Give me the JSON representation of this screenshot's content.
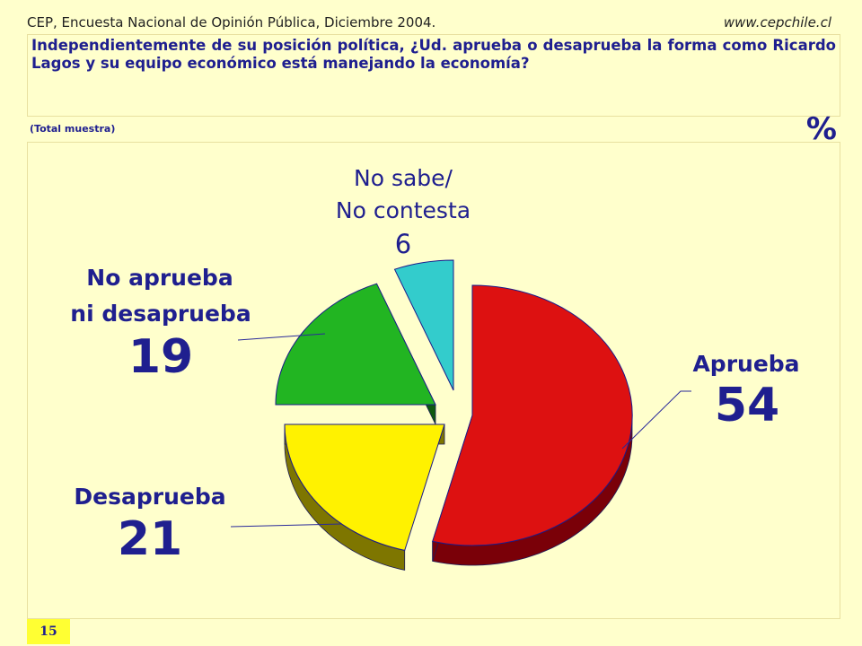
{
  "header": {
    "source": "CEP, Encuesta Nacional de Opinión Pública, Diciembre 2004.",
    "url": "www.cepchile.cl"
  },
  "question": "Independientemente de su posición política, ¿Ud. aprueba o desaprueba la forma como Ricardo Lagos y su equipo económico está manejando la economía?",
  "sample_note": "(Total muestra)",
  "unit": "%",
  "page_number": "15",
  "chart_data": {
    "type": "pie",
    "title": "",
    "slices": [
      {
        "label": "Aprueba",
        "value": 54,
        "color": "#DD1111",
        "side": "#7A0008"
      },
      {
        "label": "Desaprueba",
        "value": 21,
        "color": "#FFF200",
        "side": "#7E7600"
      },
      {
        "label": "No aprueba ni desaprueba",
        "value": 19,
        "color": "#22B522",
        "side": "#0F5A0F"
      },
      {
        "label": "No sabe/ No contesta",
        "value": 6,
        "color": "#33CCCC",
        "side": "#1A6666"
      }
    ]
  },
  "labels": {
    "aprueba": {
      "name": "Aprueba",
      "value": "54"
    },
    "desaprueba": {
      "name": "Desaprueba",
      "value": "21"
    },
    "neutral": {
      "line1": "No aprueba",
      "line2": "ni desaprueba",
      "value": "19"
    },
    "nsnc": {
      "line1": "No sabe/",
      "line2": "No contesta",
      "value": "6"
    }
  }
}
